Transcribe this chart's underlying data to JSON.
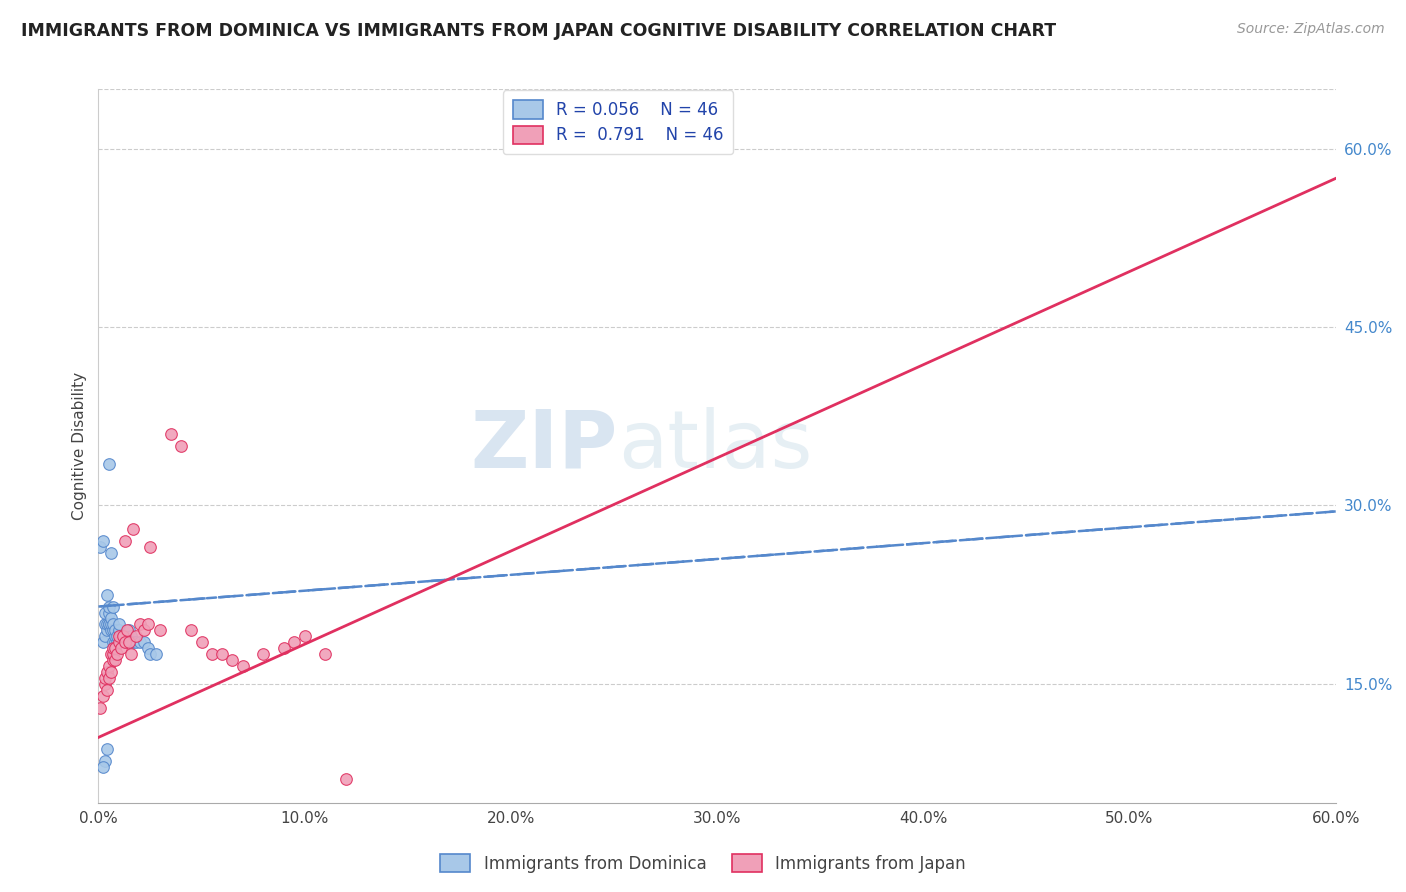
{
  "title": "IMMIGRANTS FROM DOMINICA VS IMMIGRANTS FROM JAPAN COGNITIVE DISABILITY CORRELATION CHART",
  "source": "Source: ZipAtlas.com",
  "ylabel": "Cognitive Disability",
  "x_min": 0.0,
  "x_max": 0.6,
  "y_min": 0.05,
  "y_max": 0.65,
  "x_ticks": [
    0.0,
    0.1,
    0.2,
    0.3,
    0.4,
    0.5,
    0.6
  ],
  "y_ticks": [
    0.15,
    0.3,
    0.45,
    0.6
  ],
  "y_tick_labels": [
    "15.0%",
    "30.0%",
    "45.0%",
    "60.0%"
  ],
  "x_tick_labels": [
    "0.0%",
    "10.0%",
    "20.0%",
    "30.0%",
    "40.0%",
    "50.0%",
    "60.0%"
  ],
  "color_dominica": "#a8c8e8",
  "color_japan": "#f0a0b8",
  "color_line_dominica": "#5588cc",
  "color_line_japan": "#e03060",
  "watermark_zip": "ZIP",
  "watermark_atlas": "atlas",
  "dominica_x": [
    0.001,
    0.002,
    0.002,
    0.003,
    0.003,
    0.003,
    0.004,
    0.004,
    0.004,
    0.005,
    0.005,
    0.005,
    0.005,
    0.006,
    0.006,
    0.006,
    0.007,
    0.007,
    0.007,
    0.008,
    0.008,
    0.008,
    0.009,
    0.009,
    0.01,
    0.01,
    0.011,
    0.012,
    0.013,
    0.014,
    0.015,
    0.016,
    0.016,
    0.017,
    0.018,
    0.02,
    0.022,
    0.024,
    0.025,
    0.028,
    0.005,
    0.003,
    0.004,
    0.002,
    0.006,
    0.007
  ],
  "dominica_y": [
    0.265,
    0.27,
    0.185,
    0.19,
    0.2,
    0.21,
    0.195,
    0.2,
    0.225,
    0.2,
    0.21,
    0.215,
    0.2,
    0.195,
    0.2,
    0.205,
    0.185,
    0.195,
    0.2,
    0.185,
    0.19,
    0.195,
    0.185,
    0.19,
    0.195,
    0.2,
    0.19,
    0.19,
    0.185,
    0.19,
    0.195,
    0.185,
    0.19,
    0.185,
    0.185,
    0.185,
    0.185,
    0.18,
    0.175,
    0.175,
    0.335,
    0.085,
    0.095,
    0.08,
    0.26,
    0.215
  ],
  "japan_x": [
    0.001,
    0.002,
    0.003,
    0.003,
    0.004,
    0.004,
    0.005,
    0.005,
    0.006,
    0.006,
    0.007,
    0.007,
    0.007,
    0.008,
    0.008,
    0.009,
    0.01,
    0.01,
    0.011,
    0.012,
    0.013,
    0.013,
    0.014,
    0.015,
    0.016,
    0.017,
    0.018,
    0.02,
    0.022,
    0.024,
    0.025,
    0.03,
    0.035,
    0.04,
    0.045,
    0.05,
    0.055,
    0.06,
    0.065,
    0.07,
    0.08,
    0.09,
    0.095,
    0.1,
    0.11,
    0.12
  ],
  "japan_y": [
    0.13,
    0.14,
    0.15,
    0.155,
    0.145,
    0.16,
    0.155,
    0.165,
    0.16,
    0.175,
    0.17,
    0.175,
    0.18,
    0.17,
    0.18,
    0.175,
    0.185,
    0.19,
    0.18,
    0.19,
    0.185,
    0.27,
    0.195,
    0.185,
    0.175,
    0.28,
    0.19,
    0.2,
    0.195,
    0.2,
    0.265,
    0.195,
    0.36,
    0.35,
    0.195,
    0.185,
    0.175,
    0.175,
    0.17,
    0.165,
    0.175,
    0.18,
    0.185,
    0.19,
    0.175,
    0.07
  ],
  "trend_dom_x0": 0.0,
  "trend_dom_x1": 0.6,
  "trend_dom_y0": 0.215,
  "trend_dom_y1": 0.295,
  "trend_jap_x0": 0.0,
  "trend_jap_x1": 0.6,
  "trend_jap_y0": 0.105,
  "trend_jap_y1": 0.575
}
